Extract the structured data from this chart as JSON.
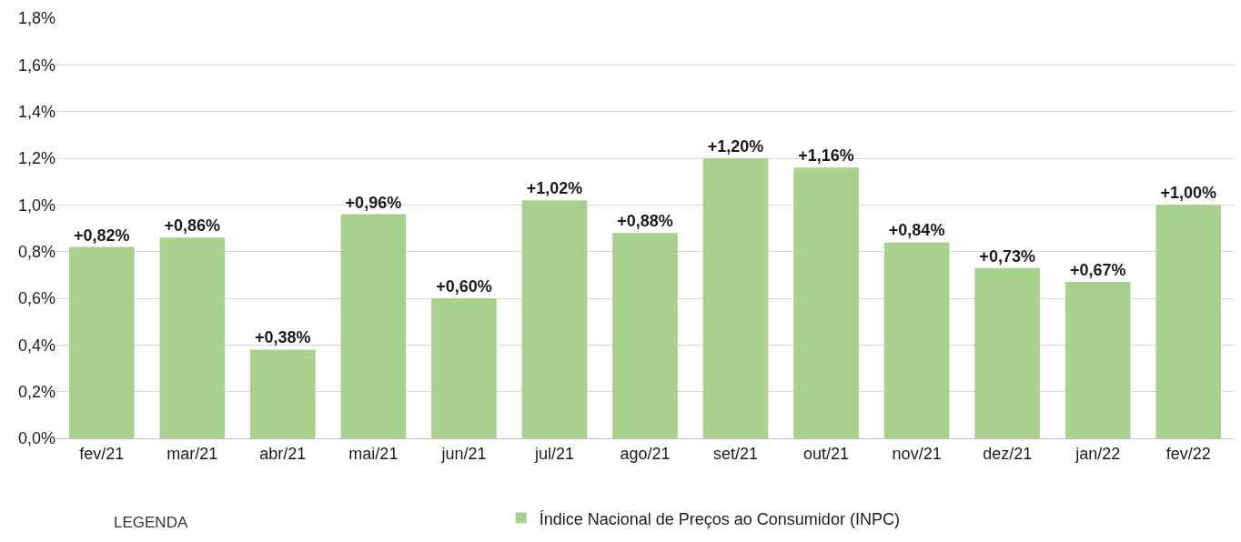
{
  "chart_data": {
    "type": "bar",
    "categories": [
      "fev/21",
      "mar/21",
      "abr/21",
      "mai/21",
      "jun/21",
      "jul/21",
      "ago/21",
      "set/21",
      "out/21",
      "nov/21",
      "dez/21",
      "jan/22",
      "fev/22"
    ],
    "series": [
      {
        "name": "Índice Nacional de Preços ao Consumidor (INPC)",
        "color": "#a9d18e",
        "values": [
          0.82,
          0.86,
          0.38,
          0.96,
          0.6,
          1.02,
          0.88,
          1.2,
          1.16,
          0.84,
          0.73,
          0.67,
          1.0
        ],
        "value_labels": [
          "+0,82%",
          "+0,86%",
          "+0,38%",
          "+0,96%",
          "+0,60%",
          "+1,02%",
          "+0,88%",
          "+1,20%",
          "+1,16%",
          "+0,84%",
          "+0,73%",
          "+0,67%",
          "+1,00%"
        ]
      }
    ],
    "ylim": [
      0,
      1.8
    ],
    "yticks": [
      {
        "value": 0,
        "label": "0,0%"
      },
      {
        "value": 0.2,
        "label": "0,2%"
      },
      {
        "value": 0.4,
        "label": "0,4%"
      },
      {
        "value": 0.6,
        "label": "0,6%"
      },
      {
        "value": 0.8,
        "label": "0,8%"
      },
      {
        "value": 1.0,
        "label": "1,0%"
      },
      {
        "value": 1.2,
        "label": "1,2%"
      },
      {
        "value": 1.4,
        "label": "1,4%"
      },
      {
        "value": 1.6,
        "label": "1,6%"
      },
      {
        "value": 1.8,
        "label": "1,8%"
      }
    ],
    "grid": "y",
    "legend": "bottom",
    "annotations": [
      "LEGENDA"
    ]
  }
}
